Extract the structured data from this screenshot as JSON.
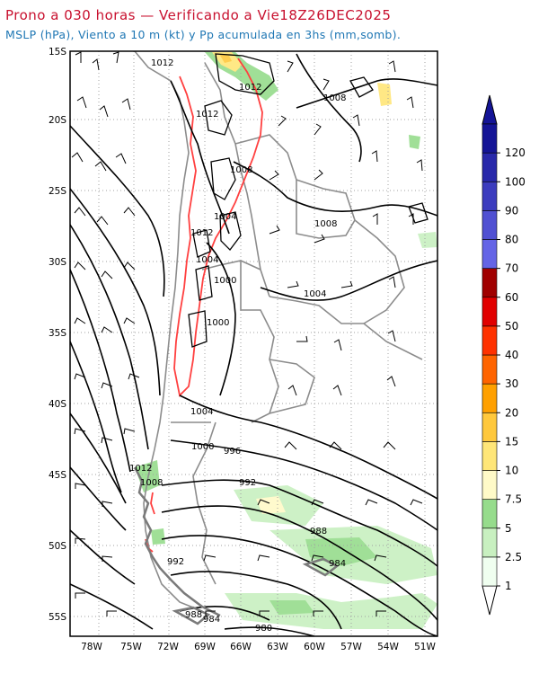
{
  "header": {
    "title": "Prono a 030 horas — Verificando a Vie18Z26DEC2025",
    "subtitle": "MSLP (hPa), Viento a 10 m (kt) y Pp acumulada en 3hs (mm,somb)."
  },
  "map": {
    "lat_labels": [
      "15S",
      "20S",
      "25S",
      "30S",
      "35S",
      "40S",
      "45S",
      "50S",
      "55S"
    ],
    "lon_labels": [
      "78W",
      "75W",
      "72W",
      "69W",
      "66W",
      "63W",
      "60W",
      "57W",
      "54W",
      "51W"
    ],
    "isobar_labels": [
      "1012",
      "1012",
      "1008",
      "1012",
      "1008",
      "1004",
      "1012",
      "1008",
      "1004",
      "1004",
      "1000",
      "1000",
      "1004",
      "1000",
      "996",
      "1012",
      "1008",
      "992",
      "988",
      "992",
      "984",
      "988",
      "984",
      "980"
    ],
    "colors": {
      "isobar": "#000000",
      "high_terrain_contour": "#ff4040",
      "borders": "#8c8c8c",
      "grid": "#a0a0a0"
    }
  },
  "colorbar": {
    "levels": [
      "1",
      "2.5",
      "5",
      "7.5",
      "10",
      "15",
      "20",
      "30",
      "40",
      "50",
      "60",
      "70",
      "80",
      "90",
      "100",
      "120"
    ],
    "colors": [
      "#f0fff0",
      "#c8f0c0",
      "#96dc8c",
      "#fffac8",
      "#ffe678",
      "#ffc83c",
      "#ffa000",
      "#ff6400",
      "#ff3200",
      "#e10000",
      "#a00000",
      "#6464e6",
      "#5050d2",
      "#3c3cbe",
      "#2828aa",
      "#141496"
    ]
  }
}
